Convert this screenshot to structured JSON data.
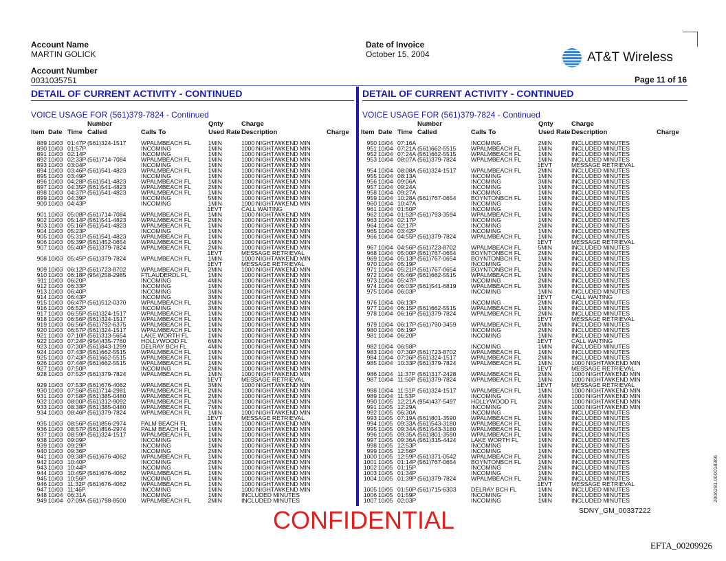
{
  "header": {
    "account_name_label": "Account Name",
    "account_name": "MARTIN GOLICK",
    "account_number_label": "Account Number",
    "account_number": "0031035751",
    "invoice_date_label": "Date of Invoice",
    "invoice_date": "October 15, 2004",
    "brand": "AT&T Wireless",
    "page": "Page  11 of 16"
  },
  "section_title": "DETAIL OF CURRENT ACTIVITY - CONTINUED",
  "subsection_title": "VOICE USAGE FOR (561)379-7824 - Continued",
  "columns": {
    "number_top": "Number",
    "qnty_top": "Qnty",
    "charge_top": "Charge",
    "item": "Item",
    "date": "Date",
    "time": "Time",
    "called": "Called",
    "calls_to": "Calls To",
    "used": "Used",
    "rate": "Rate",
    "description": "Description",
    "charge": "Charge"
  },
  "left_rows": [
    [
      "889",
      "10/03",
      "01:47P",
      "(561)324-1517",
      "WPALMBEACH FL",
      "1MIN",
      "1000 NIGHT/WKEND MIN"
    ],
    [
      "890",
      "10/03",
      "01:57P",
      "",
      "INCOMING",
      "1MIN",
      "1000 NIGHT/WKEND MIN"
    ],
    [
      "891",
      "10/03",
      "02:14P",
      "",
      "INCOMING",
      "1MIN",
      "1000 NIGHT/WKEND MIN"
    ],
    [
      "892",
      "10/03",
      "02:33P",
      "(561)714-7084",
      "WPALMBEACH FL",
      "1MIN",
      "1000 NIGHT/WKEND MIN"
    ],
    [
      "893",
      "10/03",
      "03:04P",
      "",
      "INCOMING",
      "1MIN",
      "1000 NIGHT/WKEND MIN"
    ],
    [
      "894",
      "10/03",
      "03:46P",
      "(561)541-4823",
      "WPALMBEACH FL",
      "1MIN",
      "1000 NIGHT/WKEND MIN"
    ],
    [
      "895",
      "10/03",
      "03:49P",
      "",
      "INCOMING",
      "1MIN",
      "1000 NIGHT/WKEND MIN"
    ],
    [
      "896",
      "10/03",
      "04:28P",
      "(561)541-4823",
      "WPALMBEACH FL",
      "1MIN",
      "1000 NIGHT/WKEND MIN"
    ],
    [
      "897",
      "10/03",
      "04:35P",
      "(561)541-4823",
      "WPALMBEACH FL",
      "2MIN",
      "1000 NIGHT/WKEND MIN"
    ],
    [
      "898",
      "10/03",
      "04:37P",
      "(561)541-4823",
      "WPALMBEACH FL",
      "1MIN",
      "1000 NIGHT/WKEND MIN"
    ],
    [
      "899",
      "10/03",
      "04:39P",
      "",
      "INCOMING",
      "5MIN",
      "1000 NIGHT/WKEND MIN"
    ],
    [
      "900",
      "10/03",
      "04:43P",
      "",
      "INCOMING",
      "1MIN",
      "1000 NIGHT/WKEND MIN"
    ],
    [
      "",
      "",
      "",
      "",
      "",
      "1EVT",
      "CALL WAITING"
    ],
    [
      "901",
      "10/03",
      "05:08P",
      "(561)714-7084",
      "WPALMBEACH FL",
      "1MIN",
      "1000 NIGHT/WKEND MIN"
    ],
    [
      "902",
      "10/03",
      "05:14P",
      "(561)541-4823",
      "WPALMBEACH FL",
      "2MIN",
      "1000 NIGHT/WKEND MIN"
    ],
    [
      "903",
      "10/03",
      "05:16P",
      "(561)541-4823",
      "WPALMBEACH FL",
      "1MIN",
      "1000 NIGHT/WKEND MIN"
    ],
    [
      "904",
      "10/03",
      "05:23P",
      "",
      "INCOMING",
      "1MIN",
      "1000 NIGHT/WKEND MIN"
    ],
    [
      "905",
      "10/03",
      "05:31P",
      "(561)541-4823",
      "WPALMBEACH FL",
      "1MIN",
      "1000 NIGHT/WKEND MIN"
    ],
    [
      "906",
      "10/03",
      "05:39P",
      "(561)452-0654",
      "WPALMBEACH FL",
      "1MIN",
      "1000 NIGHT/WKEND MIN"
    ],
    [
      "907",
      "10/03",
      "05:40P",
      "(561)379-7824",
      "WPALMBEACH FL",
      "2MIN",
      "1000 NIGHT/WKEND MIN"
    ],
    [
      "",
      "",
      "",
      "",
      "",
      "1EVT",
      "MESSAGE RETRIEVAL"
    ],
    [
      "908",
      "10/03",
      "05:45P",
      "(561)379-7824",
      "WPALMBEACH FL",
      "1MIN",
      "1000 NIGHT/WKEND MIN"
    ],
    [
      "",
      "",
      "",
      "",
      "",
      "1EVT",
      "MESSAGE RETRIEVAL"
    ],
    [
      "909",
      "10/03",
      "06:12P",
      "(561)723-8702",
      "WPALMBEACH FL",
      "2MIN",
      "1000 NIGHT/WKEND MIN"
    ],
    [
      "910",
      "10/03",
      "06:18P",
      "(954)258-2985",
      "FTLAUDERDL FL",
      "1MIN",
      "1000 NIGHT/WKEND MIN"
    ],
    [
      "911",
      "10/03",
      "06:20P",
      "",
      "INCOMING",
      "4MIN",
      "1000 NIGHT/WKEND MIN"
    ],
    [
      "912",
      "10/03",
      "06:33P",
      "",
      "INCOMING",
      "1MIN",
      "1000 NIGHT/WKEND MIN"
    ],
    [
      "913",
      "10/03",
      "06:40P",
      "",
      "INCOMING",
      "3MIN",
      "1000 NIGHT/WKEND MIN"
    ],
    [
      "914",
      "10/03",
      "06:43P",
      "",
      "INCOMING",
      "3MIN",
      "1000 NIGHT/WKEND MIN"
    ],
    [
      "915",
      "10/03",
      "06:47P",
      "(561)512-0370",
      "WPALMBEACH FL",
      "2MIN",
      "1000 NIGHT/WKEND MIN"
    ],
    [
      "916",
      "10/03",
      "06:52P",
      "",
      "INCOMING",
      "3MIN",
      "1000 NIGHT/WKEND MIN"
    ],
    [
      "917",
      "10/03",
      "06:55P",
      "(561)324-1517",
      "WPALMBEACH FL",
      "1MIN",
      "1000 NIGHT/WKEND MIN"
    ],
    [
      "918",
      "10/03",
      "06:56P",
      "(561)324-1517",
      "WPALMBEACH FL",
      "1MIN",
      "1000 NIGHT/WKEND MIN"
    ],
    [
      "919",
      "10/03",
      "06:56P",
      "(561)792-6375",
      "WPALMBEACH FL",
      "1MIN",
      "1000 NIGHT/WKEND MIN"
    ],
    [
      "920",
      "10/03",
      "06:57P",
      "(561)324-1517",
      "WPALMBEACH FL",
      "1MIN",
      "1000 NIGHT/WKEND MIN"
    ],
    [
      "921",
      "10/03",
      "07:10P",
      "(561)313-5654",
      "LAKE WORTH FL",
      "1MIN",
      "1000 NIGHT/WKEND MIN"
    ],
    [
      "922",
      "10/03",
      "07:24P",
      "(954)435-7760",
      "HOLLYWOOD FL",
      "6MIN",
      "1000 NIGHT/WKEND MIN"
    ],
    [
      "923",
      "10/03",
      "07:30P",
      "(561)843-1299",
      "DELRAY BCH FL",
      "4MIN",
      "1000 NIGHT/WKEND MIN"
    ],
    [
      "924",
      "10/03",
      "07:43P",
      "(561)662-5515",
      "WPALMBEACH FL",
      "1MIN",
      "1000 NIGHT/WKEND MIN"
    ],
    [
      "925",
      "10/03",
      "07:43P",
      "(561)662-5515",
      "WPALMBEACH FL",
      "1MIN",
      "1000 NIGHT/WKEND MIN"
    ],
    [
      "926",
      "10/03",
      "07:44P",
      "(561)662-5515",
      "WPALMBEACH FL",
      "1MIN",
      "1000 NIGHT/WKEND MIN"
    ],
    [
      "927",
      "10/03",
      "07:50P",
      "",
      "INCOMING",
      "2MIN",
      "1000 NIGHT/WKEND MIN"
    ],
    [
      "928",
      "10/03",
      "07:52P",
      "(561)379-7824",
      "WPALMBEACH FL",
      "1MIN",
      "1000 NIGHT/WKEND MIN"
    ],
    [
      "",
      "",
      "",
      "",
      "",
      "1EVT",
      "MESSAGE RETRIEVAL"
    ],
    [
      "929",
      "10/03",
      "07:53P",
      "(561)676-4062",
      "WPALMBEACH FL",
      "3MIN",
      "1000 NIGHT/WKEND MIN"
    ],
    [
      "930",
      "10/03",
      "07:56P",
      "(561)714-2981",
      "WPALMBEACH FL",
      "2MIN",
      "1000 NIGHT/WKEND MIN"
    ],
    [
      "931",
      "10/03",
      "07:58P",
      "(561)385-0480",
      "WPALMBEACH FL",
      "2MIN",
      "1000 NIGHT/WKEND MIN"
    ],
    [
      "932",
      "10/03",
      "08:00P",
      "(561)312-9092",
      "WPALMBEACH FL",
      "2MIN",
      "1000 NIGHT/WKEND MIN"
    ],
    [
      "933",
      "10/03",
      "08:38P",
      "(561)385-0480",
      "WPALMBEACH FL",
      "7MIN",
      "1000 NIGHT/WKEND MIN"
    ],
    [
      "934",
      "10/03",
      "08:46P",
      "(561)379-7824",
      "WPALMBEACH FL",
      "1MIN",
      "1000 NIGHT/WKEND MIN"
    ],
    [
      "",
      "",
      "",
      "",
      "",
      "1EVT",
      "MESSAGE RETRIEVAL"
    ],
    [
      "935",
      "10/03",
      "08:56P",
      "(561)856-2974",
      "PALM BEACH FL",
      "1MIN",
      "1000 NIGHT/WKEND MIN"
    ],
    [
      "936",
      "10/03",
      "08:57P",
      "(561)856-2974",
      "PALM BEACH FL",
      "1MIN",
      "1000 NIGHT/WKEND MIN"
    ],
    [
      "937",
      "10/03",
      "08:59P",
      "(561)324-1517",
      "WPALMBEACH FL",
      "1MIN",
      "1000 NIGHT/WKEND MIN"
    ],
    [
      "938",
      "10/03",
      "09:09P",
      "",
      "INCOMING",
      "1MIN",
      "1000 NIGHT/WKEND MIN"
    ],
    [
      "939",
      "10/03",
      "09:29P",
      "",
      "INCOMING",
      "1MIN",
      "1000 NIGHT/WKEND MIN"
    ],
    [
      "940",
      "10/03",
      "09:36P",
      "",
      "INCOMING",
      "2MIN",
      "1000 NIGHT/WKEND MIN"
    ],
    [
      "941",
      "10/03",
      "09:38P",
      "(561)676-4062",
      "WPALMBEACH FL",
      "1MIN",
      "1000 NIGHT/WKEND MIN"
    ],
    [
      "942",
      "10/03",
      "10:40P",
      "",
      "INCOMING",
      "2MIN",
      "1000 NIGHT/WKEND MIN"
    ],
    [
      "943",
      "10/03",
      "10:44P",
      "",
      "INCOMING",
      "1MIN",
      "1000 NIGHT/WKEND MIN"
    ],
    [
      "944",
      "10/03",
      "10:45P",
      "(561)676-4062",
      "WPALMBEACH FL",
      "1MIN",
      "1000 NIGHT/WKEND MIN"
    ],
    [
      "945",
      "10/03",
      "10:56P",
      "",
      "INCOMING",
      "1MIN",
      "1000 NIGHT/WKEND MIN"
    ],
    [
      "946",
      "10/03",
      "11:32P",
      "(561)676-4062",
      "WPALMBEACH FL",
      "1MIN",
      "1000 NIGHT/WKEND MIN"
    ],
    [
      "947",
      "10/03",
      "11:46P",
      "",
      "INCOMING",
      "1MIN",
      "1000 NIGHT/WKEND MIN"
    ],
    [
      "948",
      "10/04",
      "06:31A",
      "",
      "INCOMING",
      "1MIN",
      "INCLUDED MINUTES"
    ],
    [
      "949",
      "10/04",
      "07:09A",
      "(561)798-8500",
      "WPALMBEACH FL",
      "2MIN",
      "INCLUDED MINUTES"
    ]
  ],
  "right_rows": [
    [
      "950",
      "10/04",
      "07:16A",
      "",
      "INCOMING",
      "2MIN",
      "INCLUDED MINUTES"
    ],
    [
      "951",
      "10/04",
      "07:21A",
      "(561)662-5515",
      "WPALMBEACH FL",
      "1MIN",
      "INCLUDED MINUTES"
    ],
    [
      "952",
      "10/04",
      "07:24A",
      "(561)662-5515",
      "WPALMBEACH FL",
      "1MIN",
      "INCLUDED MINUTES"
    ],
    [
      "953",
      "10/04",
      "08:07A",
      "(561)379-7824",
      "WPALMBEACH FL",
      "1MIN",
      "INCLUDED MINUTES"
    ],
    [
      "",
      "",
      "",
      "",
      "",
      "1EVT",
      "MESSAGE RETRIEVAL"
    ],
    [
      "954",
      "10/04",
      "08:08A",
      "(561)324-1517",
      "WPALMBEACH FL",
      "2MIN",
      "INCLUDED MINUTES"
    ],
    [
      "955",
      "10/04",
      "08:13A",
      "",
      "INCOMING",
      "1MIN",
      "INCLUDED MINUTES"
    ],
    [
      "956",
      "10/04",
      "09:06A",
      "",
      "INCOMING",
      "3MIN",
      "INCLUDED MINUTES"
    ],
    [
      "957",
      "10/04",
      "09:24A",
      "",
      "INCOMING",
      "1MIN",
      "INCLUDED MINUTES"
    ],
    [
      "958",
      "10/04",
      "09:27A",
      "",
      "INCOMING",
      "1MIN",
      "INCLUDED MINUTES"
    ],
    [
      "959",
      "10/04",
      "10:28A",
      "(561)767-0654",
      "BOYNTONBCH FL",
      "1MIN",
      "INCLUDED MINUTES"
    ],
    [
      "960",
      "10/04",
      "10:47A",
      "",
      "INCOMING",
      "1MIN",
      "INCLUDED MINUTES"
    ],
    [
      "961",
      "10/04",
      "01:50P",
      "",
      "INCOMING",
      "1MIN",
      "INCLUDED MINUTES"
    ],
    [
      "962",
      "10/04",
      "01:52P",
      "(561)793-3594",
      "WPALMBEACH FL",
      "1MIN",
      "INCLUDED MINUTES"
    ],
    [
      "963",
      "10/04",
      "02:17P",
      "",
      "INCOMING",
      "1MIN",
      "INCLUDED MINUTES"
    ],
    [
      "964",
      "10/04",
      "02:17P",
      "",
      "INCOMING",
      "2MIN",
      "INCLUDED MINUTES"
    ],
    [
      "965",
      "10/04",
      "03:42P",
      "",
      "INCOMING",
      "1MIN",
      "INCLUDED MINUTES"
    ],
    [
      "966",
      "10/04",
      "04:55P",
      "(561)379-7824",
      "WPALMBEACH FL",
      "1MIN",
      "INCLUDED MINUTES"
    ],
    [
      "",
      "",
      "",
      "",
      "",
      "1EVT",
      "MESSAGE RETRIEVAL"
    ],
    [
      "967",
      "10/04",
      "04:56P",
      "(561)723-8702",
      "WPALMBEACH FL",
      "5MIN",
      "INCLUDED MINUTES"
    ],
    [
      "968",
      "10/04",
      "05:00P",
      "(561)767-0654",
      "BOYNTONBCH FL",
      "2MIN",
      "INCLUDED MINUTES"
    ],
    [
      "969",
      "10/04",
      "05:13P",
      "(561)767-0654",
      "BOYNTONBCH FL",
      "1MIN",
      "INCLUDED MINUTES"
    ],
    [
      "970",
      "10/04",
      "05:19P",
      "",
      "INCOMING",
      "2MIN",
      "INCLUDED MINUTES"
    ],
    [
      "971",
      "10/04",
      "05:21P",
      "(561)767-0654",
      "BOYNTONBCH FL",
      "2MIN",
      "INCLUDED MINUTES"
    ],
    [
      "972",
      "10/04",
      "05:46P",
      "(561)662-5515",
      "WPALMBEACH FL",
      "1MIN",
      "INCLUDED MINUTES"
    ],
    [
      "973",
      "10/04",
      "05:47P",
      "",
      "INCOMING",
      "2MIN",
      "INCLUDED MINUTES"
    ],
    [
      "974",
      "10/04",
      "06:03P",
      "(561)541-6819",
      "WPALMBEACH FL",
      "3MIN",
      "INCLUDED MINUTES"
    ],
    [
      "975",
      "10/04",
      "06:03P",
      "",
      "INCOMING",
      "1MIN",
      "INCLUDED MINUTES"
    ],
    [
      "",
      "",
      "",
      "",
      "",
      "1EVT",
      "CALL WAITING"
    ],
    [
      "976",
      "10/04",
      "06:13P",
      "",
      "INCOMING",
      "2MIN",
      "INCLUDED MINUTES"
    ],
    [
      "977",
      "10/04",
      "06:15P",
      "(561)662-5515",
      "WPALMBEACH FL",
      "1MIN",
      "INCLUDED MINUTES"
    ],
    [
      "978",
      "10/04",
      "06:16P",
      "(561)379-7824",
      "WPALMBEACH FL",
      "2MIN",
      "INCLUDED MINUTES"
    ],
    [
      "",
      "",
      "",
      "",
      "",
      "1EVT",
      "MESSAGE RETRIEVAL"
    ],
    [
      "979",
      "10/04",
      "06:17P",
      "(561)790-3459",
      "WPALMBEACH FL",
      "2MIN",
      "INCLUDED MINUTES"
    ],
    [
      "980",
      "10/04",
      "06:19P",
      "",
      "INCOMING",
      "2MIN",
      "INCLUDED MINUTES"
    ],
    [
      "981",
      "10/04",
      "06:20P",
      "",
      "INCOMING",
      "1MIN",
      "INCLUDED MINUTES"
    ],
    [
      "",
      "",
      "",
      "",
      "",
      "1EVT",
      "CALL WAITING"
    ],
    [
      "982",
      "10/04",
      "06:58P",
      "",
      "INCOMING",
      "1MIN",
      "INCLUDED MINUTES"
    ],
    [
      "983",
      "10/04",
      "07:30P",
      "(561)723-8702",
      "WPALMBEACH FL",
      "1MIN",
      "INCLUDED MINUTES"
    ],
    [
      "984",
      "10/04",
      "07:36P",
      "(561)324-1517",
      "WPALMBEACH FL",
      "2MIN",
      "INCLUDED MINUTES"
    ],
    [
      "985",
      "10/04",
      "10:33P",
      "(561)379-7824",
      "WPALMBEACH FL",
      "1MIN",
      "1000 NIGHT/WKEND MIN"
    ],
    [
      "",
      "",
      "",
      "",
      "",
      "1EVT",
      "MESSAGE RETRIEVAL"
    ],
    [
      "986",
      "10/04",
      "11:37P",
      "(561)317-2428",
      "WPALMBEACH FL",
      "2MIN",
      "1000 NIGHT/WKEND MIN"
    ],
    [
      "987",
      "10/04",
      "11:50P",
      "(561)379-7824",
      "WPALMBEACH FL",
      "1MIN",
      "1000 NIGHT/WKEND MIN"
    ],
    [
      "",
      "",
      "",
      "",
      "",
      "1EVT",
      "MESSAGE RETRIEVAL"
    ],
    [
      "988",
      "10/04",
      "11:51P",
      "(561)324-1517",
      "WPALMBEACH FL",
      "1MIN",
      "1000 NIGHT/WKEND MIN"
    ],
    [
      "989",
      "10/04",
      "11:53P",
      "",
      "INCOMING",
      "4MIN",
      "1000 NIGHT/WKEND MIN"
    ],
    [
      "990",
      "10/05",
      "12:21A",
      "(954)437-5497",
      "HOLLYWOOD FL",
      "2MIN",
      "1000 NIGHT/WKEND MIN"
    ],
    [
      "991",
      "10/05",
      "12:29A",
      "",
      "INCOMING",
      "2MIN",
      "1000 NIGHT/WKEND MIN"
    ],
    [
      "992",
      "10/05",
      "06:30A",
      "",
      "INCOMING",
      "1MIN",
      "INCLUDED MINUTES"
    ],
    [
      "993",
      "10/05",
      "07:19A",
      "(561)801-3590",
      "WPALMBEACH FL",
      "1MIN",
      "INCLUDED MINUTES"
    ],
    [
      "994",
      "10/05",
      "09:33A",
      "(561)543-3180",
      "WPALMBEACH FL",
      "1MIN",
      "INCLUDED MINUTES"
    ],
    [
      "995",
      "10/05",
      "09:34A",
      "(561)543-3180",
      "WPALMBEACH FL",
      "1MIN",
      "INCLUDED MINUTES"
    ],
    [
      "996",
      "10/05",
      "09:35A",
      "(561)801-3590",
      "WPALMBEACH FL",
      "1MIN",
      "INCLUDED MINUTES"
    ],
    [
      "997",
      "10/05",
      "09:36A",
      "(561)315-4424",
      "LAKE WORTH FL",
      "1MIN",
      "INCLUDED MINUTES"
    ],
    [
      "998",
      "10/05",
      "12:53P",
      "",
      "INCOMING",
      "1MIN",
      "INCLUDED MINUTES"
    ],
    [
      "999",
      "10/05",
      "12:56P",
      "",
      "INCOMING",
      "1MIN",
      "INCLUDED MINUTES"
    ],
    [
      "1000",
      "10/05",
      "12:59P",
      "(561)371-0542",
      "WPALMBEACH FL",
      "2MIN",
      "INCLUDED MINUTES"
    ],
    [
      "1001",
      "10/05",
      "01:14P",
      "(561)767-0654",
      "BOYNTONBCH FL",
      "1MIN",
      "INCLUDED MINUTES"
    ],
    [
      "1002",
      "10/05",
      "01:15P",
      "",
      "INCOMING",
      "2MIN",
      "INCLUDED MINUTES"
    ],
    [
      "1003",
      "10/05",
      "01:34P",
      "",
      "INCOMING",
      "1MIN",
      "INCLUDED MINUTES"
    ],
    [
      "1004",
      "10/05",
      "01:39P",
      "(561)379-7824",
      "WPALMBEACH FL",
      "2MIN",
      "INCLUDED MINUTES"
    ],
    [
      "",
      "",
      "",
      "",
      "",
      "1EVT",
      "MESSAGE RETRIEVAL"
    ],
    [
      "1005",
      "10/05",
      "01:50P",
      "(561)715-6303",
      "DELRAY BCH FL",
      "1MIN",
      "INCLUDED MINUTES"
    ],
    [
      "1006",
      "10/05",
      "01:59P",
      "",
      "INCOMING",
      "1MIN",
      "INCLUDED MINUTES"
    ],
    [
      "1007",
      "10/05",
      "02:03P",
      "",
      "INCOMING",
      "1MIN",
      "INCLUDED MINUTES"
    ]
  ],
  "footer": {
    "confidential": "CONFIDENTIAL",
    "bates_sdny": "SDNY_GM_00337222",
    "side_stamp": "2006281.000018366",
    "efta": "EFTA_00209926"
  },
  "colors": {
    "accent_blue": "#1c1cb0",
    "confidential_red": "#e0201c"
  }
}
